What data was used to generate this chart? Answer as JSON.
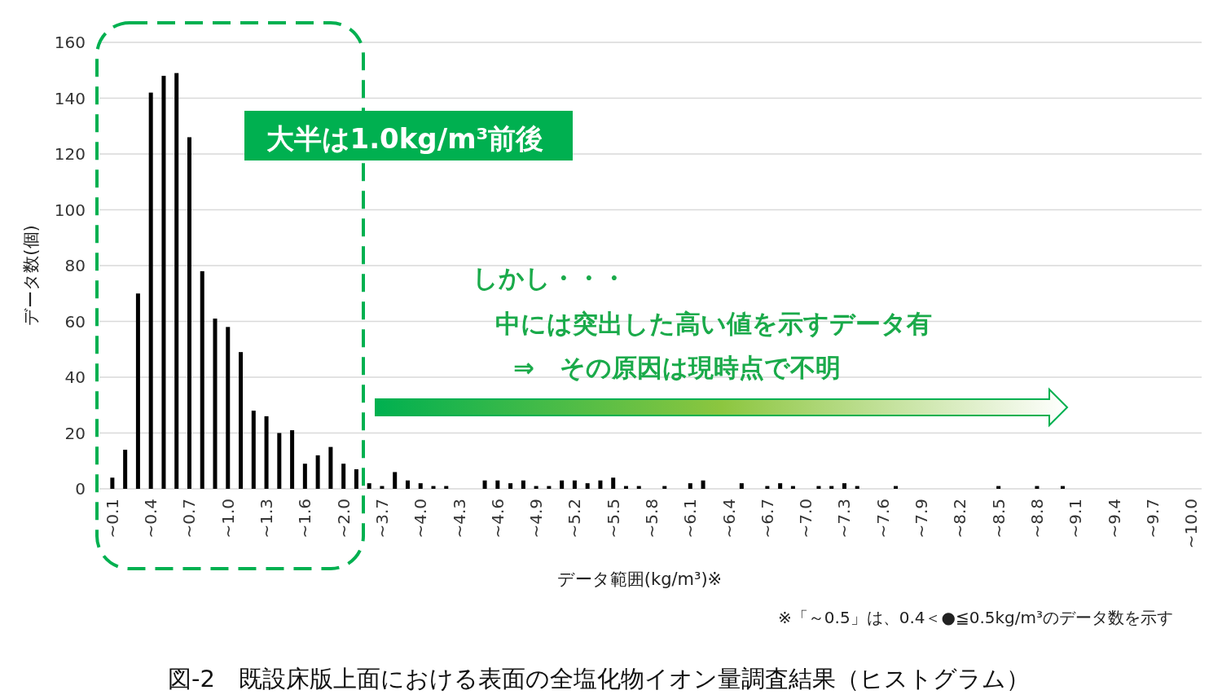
{
  "chart_data": {
    "type": "bar",
    "title": "図-2　既設床版上面における表面の全塩化物イオン量調査結果（ヒストグラム）",
    "xlabel": "データ範囲(kg/m³)※",
    "ylabel": "データ数(個)",
    "categories": [
      "~0.1",
      null,
      null,
      "~0.4",
      null,
      null,
      "~0.7",
      null,
      null,
      "~1.0",
      null,
      null,
      "~1.3",
      null,
      null,
      "~1.6",
      null,
      null,
      "~2.0",
      null,
      null,
      "~3.7",
      null,
      null,
      "~4.0",
      null,
      null,
      "~4.3",
      null,
      null,
      "~4.6",
      null,
      null,
      "~4.9",
      null,
      null,
      "~5.2",
      null,
      null,
      "~5.5",
      null,
      null,
      "~5.8",
      null,
      null,
      "~6.1",
      null,
      null,
      "~6.4",
      null,
      null,
      "~6.7",
      null,
      null,
      "~7.0",
      null,
      null,
      "~7.3",
      null,
      null,
      "~7.6",
      null,
      null,
      "~7.9",
      null,
      null,
      "~8.2",
      null,
      null,
      "~8.5",
      null,
      null,
      "~8.8",
      null,
      null,
      "~9.1",
      null,
      null,
      "~9.4",
      null,
      null,
      "~9.7",
      null,
      null,
      "~10.0"
    ],
    "values": [
      4,
      14,
      70,
      142,
      148,
      149,
      126,
      78,
      61,
      58,
      49,
      28,
      26,
      20,
      21,
      9,
      12,
      15,
      9,
      7,
      2,
      1,
      6,
      3,
      2,
      1,
      1,
      0,
      0,
      3,
      3,
      2,
      3,
      1,
      1,
      3,
      3,
      2,
      3,
      4,
      1,
      1,
      0,
      1,
      0,
      2,
      3,
      0,
      0,
      2,
      0,
      1,
      2,
      1,
      0,
      1,
      1,
      2,
      1,
      0,
      0,
      1,
      0,
      0,
      0,
      0,
      0,
      0,
      0,
      1,
      0,
      0,
      1,
      0,
      1,
      0,
      0,
      0,
      0,
      0,
      0,
      0,
      0,
      0,
      0
    ],
    "color": "#000000",
    "ylim": [
      0,
      160
    ],
    "yticks": [
      0,
      20,
      40,
      60,
      80,
      100,
      120,
      140,
      160
    ],
    "grid": "y",
    "annotations": [
      "大半は1.0kg/m³前後",
      "しかし・・・",
      "中には突出した高い値を示すデータ有",
      "⇒　その原因は現時点で不明",
      "※「～0.5」は、0.4＜●≦0.5kg/m³のデータ数を示す"
    ]
  }
}
